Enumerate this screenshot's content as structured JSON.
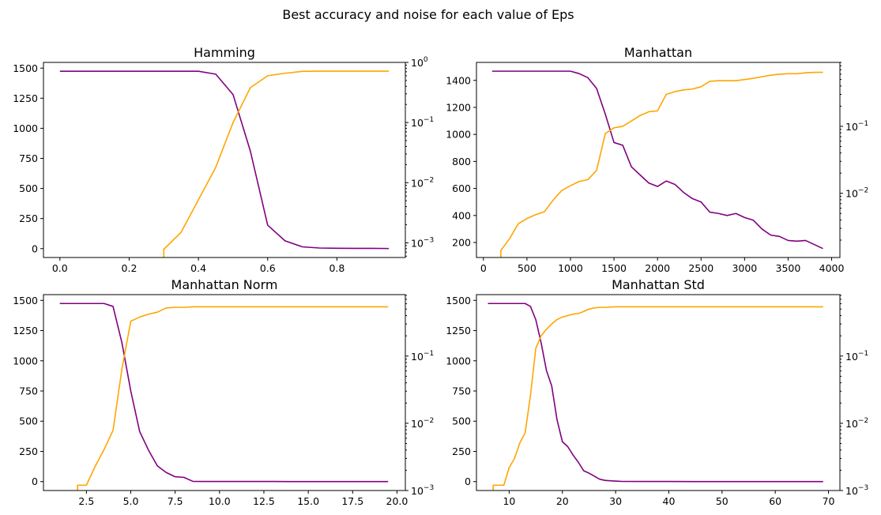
{
  "figure": {
    "title": "Best accuracy and noise for each value of Eps"
  },
  "colors": {
    "accuracy": "#800080",
    "noise": "#FFA500",
    "axis": "#000000"
  },
  "chart_data": [
    {
      "type": "line",
      "title": "Hamming",
      "xlim": [
        -0.0475,
        0.9975
      ],
      "ylim": [
        -73.7,
        1547.6
      ],
      "y2lim": [
        0.00057,
        1.0
      ],
      "y2scale": "log",
      "xticks": [
        0.0,
        0.2,
        0.4,
        0.6,
        0.8
      ],
      "xtick_labels": [
        "0.0",
        "0.2",
        "0.4",
        "0.6",
        "0.8"
      ],
      "yticks": [
        0,
        250,
        500,
        750,
        1000,
        1250,
        1500
      ],
      "ytick_labels": [
        "0",
        "250",
        "500",
        "750",
        "1000",
        "1250",
        "1500"
      ],
      "y2ticks": [
        0.001,
        0.01,
        0.1,
        1
      ],
      "y2tick_labels": [
        [
          "10",
          "−3"
        ],
        [
          "10",
          "−2"
        ],
        [
          "10",
          "−1"
        ],
        [
          "10",
          "0"
        ]
      ],
      "series": [
        {
          "color_key": "accuracy",
          "axis": "left",
          "x": [
            0.0,
            0.05,
            0.1,
            0.15,
            0.2,
            0.25,
            0.3,
            0.35,
            0.4,
            0.45,
            0.5,
            0.55,
            0.6,
            0.65,
            0.7,
            0.75,
            0.8,
            0.85,
            0.9,
            0.95
          ],
          "y": [
            1474,
            1474,
            1474,
            1474,
            1474,
            1474,
            1474,
            1474,
            1474,
            1450,
            1280,
            810,
            195,
            65,
            15,
            5,
            3,
            2,
            2,
            1
          ]
        },
        {
          "color_key": "noise",
          "axis": "right",
          "x": [
            0.3,
            0.3,
            0.35,
            0.4,
            0.45,
            0.5,
            0.55,
            0.6,
            0.65,
            0.7,
            0.75,
            0.8,
            0.85,
            0.9,
            0.95
          ],
          "y": [
            0.0005,
            0.00078,
            0.0015,
            0.0052,
            0.018,
            0.1,
            0.38,
            0.6,
            0.66,
            0.71,
            0.715,
            0.715,
            0.715,
            0.715,
            0.715
          ]
        }
      ]
    },
    {
      "type": "line",
      "title": "Manhattan",
      "xlim": [
        -80,
        4095
      ],
      "ylim": [
        89,
        1533
      ],
      "y2lim": [
        0.0011,
        0.9
      ],
      "y2scale": "log",
      "xticks": [
        0,
        500,
        1000,
        1500,
        2000,
        2500,
        3000,
        3500,
        4000
      ],
      "xtick_labels": [
        "0",
        "500",
        "1000",
        "1500",
        "2000",
        "2500",
        "3000",
        "3500",
        "4000"
      ],
      "yticks": [
        200,
        400,
        600,
        800,
        1000,
        1200,
        1400
      ],
      "ytick_labels": [
        "200",
        "400",
        "600",
        "800",
        "1000",
        "1200",
        "1400"
      ],
      "y2ticks": [
        0.01,
        0.1
      ],
      "y2tick_labels": [
        [
          "10",
          "−2"
        ],
        [
          "10",
          "−1"
        ]
      ],
      "series": [
        {
          "color_key": "accuracy",
          "axis": "left",
          "x": [
            100,
            200,
            300,
            400,
            500,
            600,
            700,
            800,
            900,
            1000,
            1100,
            1200,
            1300,
            1400,
            1500,
            1600,
            1700,
            1800,
            1900,
            2000,
            2100,
            2200,
            2300,
            2400,
            2500,
            2600,
            2700,
            2800,
            2900,
            3000,
            3100,
            3200,
            3300,
            3400,
            3500,
            3600,
            3700,
            3800,
            3900
          ],
          "y": [
            1468,
            1468,
            1468,
            1468,
            1468,
            1468,
            1468,
            1468,
            1468,
            1468,
            1450,
            1420,
            1340,
            1150,
            940,
            920,
            760,
            700,
            640,
            615,
            655,
            630,
            570,
            525,
            500,
            425,
            415,
            400,
            415,
            385,
            365,
            300,
            255,
            245,
            215,
            210,
            215,
            185,
            155
          ]
        },
        {
          "color_key": "noise",
          "axis": "right",
          "x": [
            200,
            200,
            300,
            400,
            500,
            600,
            700,
            800,
            900,
            1000,
            1100,
            1200,
            1300,
            1400,
            1500,
            1600,
            1700,
            1800,
            1900,
            2000,
            2100,
            2200,
            2300,
            2400,
            2500,
            2600,
            2700,
            2800,
            2900,
            3000,
            3100,
            3200,
            3300,
            3400,
            3500,
            3600,
            3700,
            3800,
            3900
          ],
          "y": [
            0.001,
            0.0014,
            0.0021,
            0.0035,
            0.0042,
            0.0048,
            0.0053,
            0.0079,
            0.011,
            0.013,
            0.015,
            0.016,
            0.022,
            0.078,
            0.095,
            0.1,
            0.12,
            0.145,
            0.165,
            0.17,
            0.3,
            0.33,
            0.35,
            0.36,
            0.39,
            0.47,
            0.48,
            0.48,
            0.48,
            0.5,
            0.52,
            0.55,
            0.58,
            0.6,
            0.61,
            0.61,
            0.63,
            0.64,
            0.64
          ]
        }
      ]
    },
    {
      "type": "line",
      "title": "Manhattan Norm",
      "xlim": [
        0.08,
        20.47
      ],
      "ylim": [
        -73.7,
        1547.6
      ],
      "y2lim": [
        0.001,
        0.82
      ],
      "y2scale": "log",
      "xticks": [
        2.5,
        5.0,
        7.5,
        10.0,
        12.5,
        15.0,
        17.5,
        20.0
      ],
      "xtick_labels": [
        "2.5",
        "5.0",
        "7.5",
        "10.0",
        "12.5",
        "15.0",
        "17.5",
        "20.0"
      ],
      "yticks": [
        0,
        250,
        500,
        750,
        1000,
        1250,
        1500
      ],
      "ytick_labels": [
        "0",
        "250",
        "500",
        "750",
        "1000",
        "1250",
        "1500"
      ],
      "y2ticks": [
        0.001,
        0.01,
        0.1
      ],
      "y2tick_labels": [
        [
          "10",
          "−3"
        ],
        [
          "10",
          "−2"
        ],
        [
          "10",
          "−1"
        ]
      ],
      "series": [
        {
          "color_key": "accuracy",
          "axis": "left",
          "x": [
            1.0,
            1.5,
            2.0,
            2.5,
            3.0,
            3.5,
            4.0,
            4.5,
            5.0,
            5.5,
            6.0,
            6.5,
            7.0,
            7.5,
            8.0,
            8.5,
            9.0,
            10.0,
            11.0,
            12.0,
            13.0,
            14.0,
            15.0,
            16.0,
            17.0,
            18.0,
            19.0,
            19.5
          ],
          "y": [
            1474,
            1474,
            1474,
            1474,
            1474,
            1474,
            1450,
            1150,
            750,
            415,
            260,
            130,
            75,
            40,
            35,
            2,
            1,
            1,
            1,
            1,
            1,
            0,
            0,
            0,
            0,
            0,
            0,
            0
          ]
        },
        {
          "color_key": "noise",
          "axis": "right",
          "x": [
            2.0,
            2.0,
            2.5,
            3.0,
            3.5,
            4.0,
            4.5,
            5.0,
            5.5,
            6.0,
            6.5,
            7.0,
            7.5,
            8.0,
            8.5,
            10.0,
            12.0,
            14.0,
            16.0,
            18.0,
            19.5
          ],
          "y": [
            0.0009,
            0.0012,
            0.0012,
            0.0023,
            0.0041,
            0.0078,
            0.064,
            0.33,
            0.38,
            0.42,
            0.45,
            0.52,
            0.53,
            0.53,
            0.54,
            0.54,
            0.54,
            0.54,
            0.54,
            0.54,
            0.54
          ]
        }
      ]
    },
    {
      "type": "line",
      "title": "Manhattan Std",
      "xlim": [
        3.85,
        72.15
      ],
      "ylim": [
        -73.7,
        1547.6
      ],
      "y2lim": [
        0.001,
        0.82
      ],
      "y2scale": "log",
      "xticks": [
        10,
        20,
        30,
        40,
        50,
        60,
        70
      ],
      "xtick_labels": [
        "10",
        "20",
        "30",
        "40",
        "50",
        "60",
        "70"
      ],
      "yticks": [
        0,
        250,
        500,
        750,
        1000,
        1250,
        1500
      ],
      "ytick_labels": [
        "0",
        "250",
        "500",
        "750",
        "1000",
        "1250",
        "1500"
      ],
      "y2ticks": [
        0.001,
        0.01,
        0.1
      ],
      "y2tick_labels": [
        [
          "10",
          "−3"
        ],
        [
          "10",
          "−2"
        ],
        [
          "10",
          "−1"
        ]
      ],
      "series": [
        {
          "color_key": "accuracy",
          "axis": "left",
          "x": [
            6,
            7,
            8,
            9,
            10,
            11,
            12,
            13,
            14,
            15,
            16,
            17,
            18,
            19,
            20,
            21,
            22,
            23,
            24,
            25,
            26,
            27,
            28,
            29,
            30,
            31,
            35,
            40,
            45,
            50,
            55,
            60,
            65,
            69
          ],
          "y": [
            1474,
            1474,
            1474,
            1474,
            1474,
            1474,
            1474,
            1474,
            1450,
            1340,
            1150,
            920,
            790,
            510,
            330,
            290,
            220,
            160,
            90,
            70,
            45,
            20,
            10,
            7,
            4,
            2,
            1,
            1,
            0,
            0,
            0,
            0,
            0,
            0
          ]
        },
        {
          "color_key": "noise",
          "axis": "right",
          "x": [
            7,
            7,
            8,
            9,
            10,
            11,
            12,
            13,
            14,
            15,
            16,
            17,
            18,
            19,
            20,
            21,
            22,
            23,
            24,
            25,
            26,
            27,
            28,
            30,
            35,
            40,
            50,
            60,
            69
          ],
          "y": [
            0.0009,
            0.0012,
            0.0012,
            0.0012,
            0.0022,
            0.003,
            0.0051,
            0.0072,
            0.026,
            0.13,
            0.2,
            0.25,
            0.3,
            0.35,
            0.38,
            0.4,
            0.42,
            0.43,
            0.46,
            0.5,
            0.52,
            0.53,
            0.53,
            0.54,
            0.54,
            0.54,
            0.54,
            0.54,
            0.54
          ]
        }
      ]
    }
  ]
}
